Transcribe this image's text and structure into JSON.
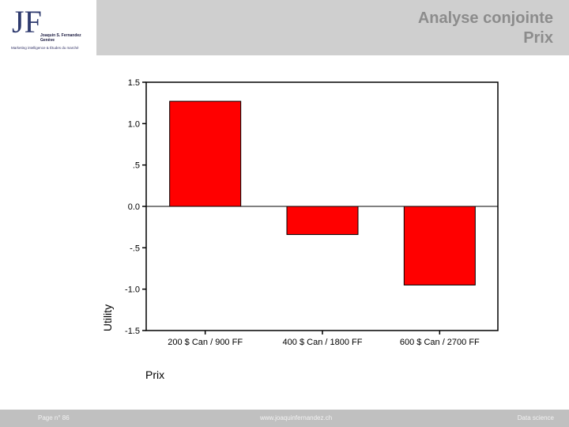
{
  "header": {
    "title_line1": "Analyse conjointe",
    "title_line2": "Prix",
    "logo": {
      "letters": "JF",
      "name_line1": "Joaquin S. Fernandez",
      "name_line2": "Genève",
      "tagline": "Marketing intelligence & Études du marché"
    }
  },
  "colors": {
    "bar": "#ff0000",
    "header_band": "#cfcfcf",
    "footer_band": "#c0c0c0",
    "title": "#8c8c8c"
  },
  "chart_data": {
    "type": "bar",
    "categories": [
      "200 $ Can / 900 FF",
      "400 $ Can / 1800 FF",
      "600 $ Can / 2700 FF"
    ],
    "values": [
      1.27,
      -0.34,
      -0.95
    ],
    "xlabel": "Prix",
    "ylabel": "Utility",
    "ylim": [
      -1.5,
      1.5
    ],
    "yticks": [
      1.5,
      1.0,
      0.5,
      0.0,
      -0.5,
      -1.0,
      -1.5
    ],
    "ytick_labels": [
      "1.5",
      "1.0",
      ".5",
      "0.0",
      "-.5",
      "-1.0",
      "-1.5"
    ],
    "grid": false,
    "zero_line": true
  },
  "footer": {
    "page": "Page n° 86",
    "url": "www.joaquinfernandez.ch",
    "section": "Data science"
  }
}
